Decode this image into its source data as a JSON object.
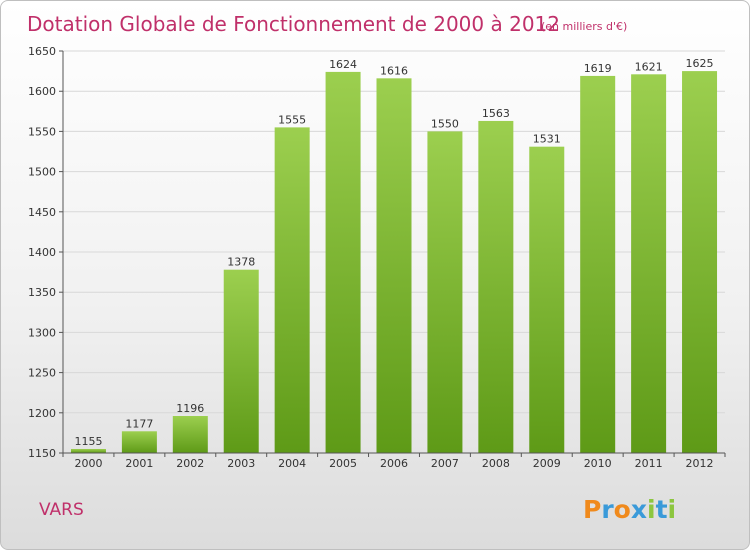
{
  "chart_data": {
    "type": "bar",
    "title": "Dotation Globale de Fonctionnement de 2000 à 2012",
    "subtitle": "(en milliers d'€)",
    "categories": [
      "2000",
      "2001",
      "2002",
      "2003",
      "2004",
      "2005",
      "2006",
      "2007",
      "2008",
      "2009",
      "2010",
      "2011",
      "2012"
    ],
    "values": [
      1155,
      1177,
      1196,
      1378,
      1555,
      1624,
      1616,
      1550,
      1563,
      1531,
      1619,
      1621,
      1625
    ],
    "ylim": [
      1150,
      1650
    ],
    "yticks": [
      1150,
      1200,
      1250,
      1300,
      1350,
      1400,
      1450,
      1500,
      1550,
      1600,
      1650
    ],
    "grid": true,
    "bar_color_top": "#9ccf4f",
    "bar_color_bottom": "#5e9a17"
  },
  "place": "VARS",
  "brand": {
    "letters": [
      "P",
      "r",
      "o",
      "x",
      "i",
      "t",
      "i"
    ],
    "colors": [
      "#f08a1c",
      "#3a9ad9",
      "#f08a1c",
      "#3a9ad9",
      "#8cc63f",
      "#3a9ad9",
      "#8cc63f"
    ]
  }
}
